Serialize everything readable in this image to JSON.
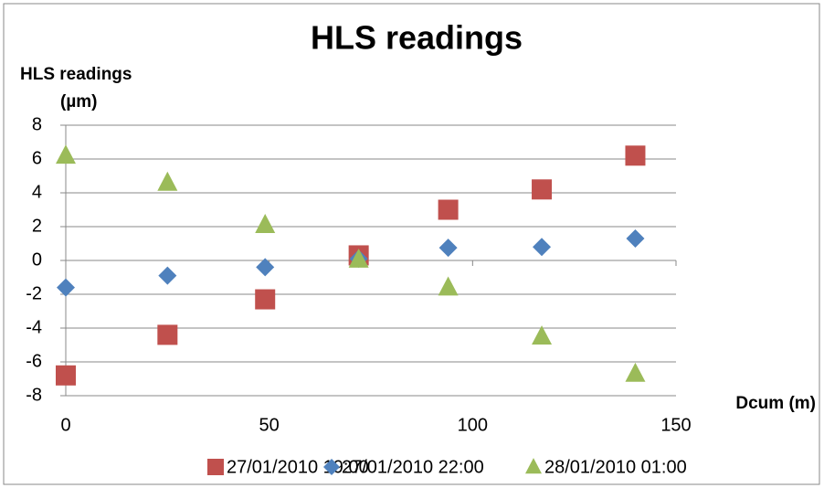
{
  "chart_data": {
    "type": "scatter",
    "title": "HLS readings",
    "ylabel": [
      "HLS readings",
      "(µm)"
    ],
    "xlabel": "Dcum (m)",
    "xlim": [
      0,
      150
    ],
    "xticks": [
      0,
      50,
      100,
      150
    ],
    "ylim": [
      -8,
      8
    ],
    "yticks": [
      -8,
      -6,
      -4,
      -2,
      0,
      2,
      4,
      6,
      8
    ],
    "grid": true,
    "legend": "bottom",
    "series": [
      {
        "name": "27/01/2010 19:00",
        "color": "#c0504d",
        "marker": "square",
        "x": [
          0,
          25,
          49,
          72,
          94,
          117,
          140
        ],
        "values": [
          -6.8,
          -4.4,
          -2.3,
          0.3,
          3.0,
          4.2,
          6.2
        ]
      },
      {
        "name": "27/01/2010 22:00",
        "color": "#4f81bd",
        "marker": "diamond",
        "x": [
          0,
          25,
          49,
          72,
          94,
          117,
          140
        ],
        "values": [
          -1.6,
          -0.9,
          -0.4,
          0.1,
          0.75,
          0.8,
          1.3
        ]
      },
      {
        "name": "28/01/2010 01:00",
        "color": "#9bbb59",
        "marker": "triangle",
        "x": [
          0,
          25,
          49,
          72,
          94,
          117,
          140
        ],
        "values": [
          6.2,
          4.6,
          2.1,
          0.05,
          -1.6,
          -4.5,
          -6.7
        ]
      }
    ]
  }
}
